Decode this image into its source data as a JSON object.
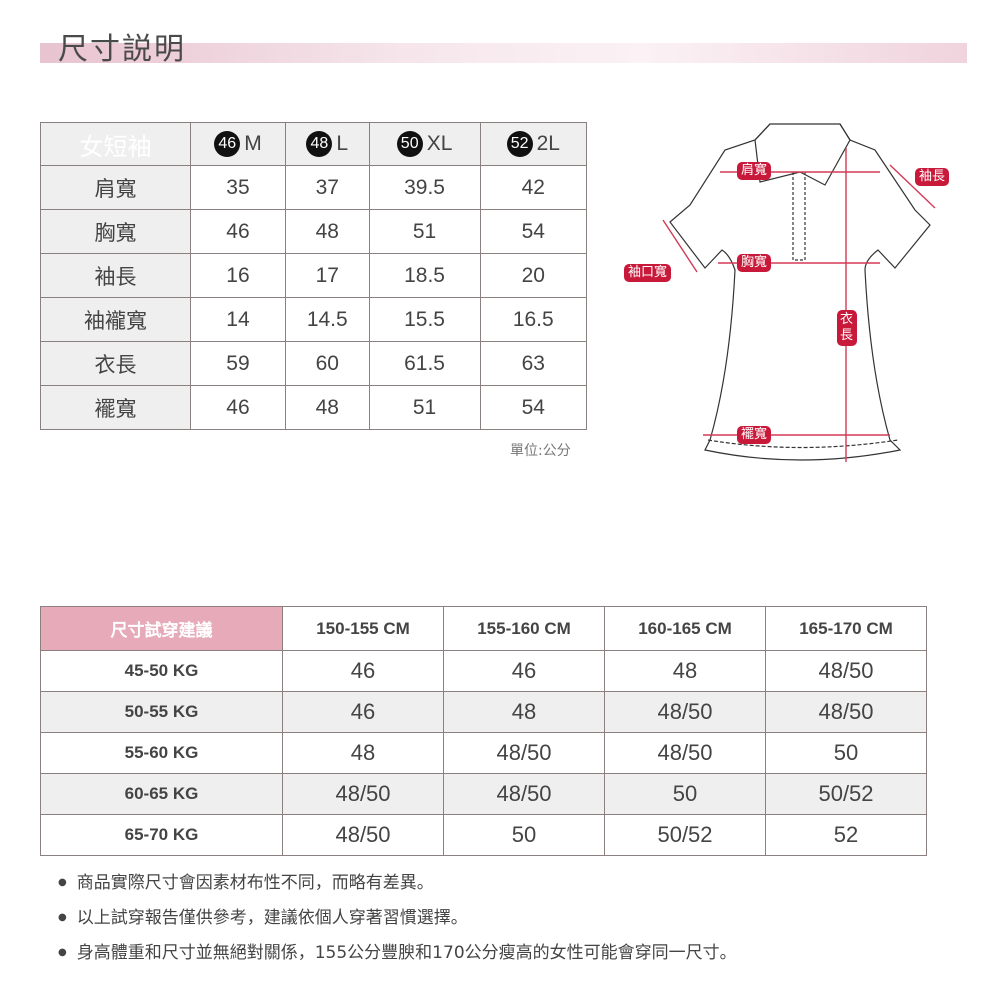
{
  "title": "尺寸説明",
  "size_table": {
    "header": "女短袖",
    "sizes": [
      {
        "num": "46",
        "label": "M"
      },
      {
        "num": "48",
        "label": "L"
      },
      {
        "num": "50",
        "label": "XL"
      },
      {
        "num": "52",
        "label": "2L"
      }
    ],
    "rows": [
      {
        "label": "肩寬",
        "values": [
          "35",
          "37",
          "39.5",
          "42"
        ]
      },
      {
        "label": "胸寬",
        "values": [
          "46",
          "48",
          "51",
          "54"
        ]
      },
      {
        "label": "袖長",
        "values": [
          "16",
          "17",
          "18.5",
          "20"
        ]
      },
      {
        "label": "袖襱寬",
        "values": [
          "14",
          "14.5",
          "15.5",
          "16.5"
        ]
      },
      {
        "label": "衣長",
        "values": [
          "59",
          "60",
          "61.5",
          "63"
        ]
      },
      {
        "label": "襬寬",
        "values": [
          "46",
          "48",
          "51",
          "54"
        ]
      }
    ],
    "unit": "單位:公分"
  },
  "diagram": {
    "labels": {
      "shoulder": "肩寬",
      "sleeve": "袖長",
      "cuff": "袖口寬",
      "chest": "胸寬",
      "length": "衣長",
      "hem": "襬寬"
    },
    "accent": "#c8193a"
  },
  "fit_table": {
    "header": "尺寸試穿建議",
    "heights": [
      "150-155 CM",
      "155-160 CM",
      "160-165 CM",
      "165-170 CM"
    ],
    "rows": [
      {
        "weight": "45-50 KG",
        "values": [
          "46",
          "46",
          "48",
          "48/50"
        ]
      },
      {
        "weight": "50-55 KG",
        "values": [
          "46",
          "48",
          "48/50",
          "48/50"
        ]
      },
      {
        "weight": "55-60 KG",
        "values": [
          "48",
          "48/50",
          "48/50",
          "50"
        ]
      },
      {
        "weight": "60-65 KG",
        "values": [
          "48/50",
          "48/50",
          "50",
          "50/52"
        ]
      },
      {
        "weight": "65-70 KG",
        "values": [
          "48/50",
          "50",
          "50/52",
          "52"
        ]
      }
    ]
  },
  "notes": [
    "商品實際尺寸會因素材布性不同，而略有差異。",
    "以上試穿報告僅供參考，建議依個人穿著習慣選擇。",
    "身高體重和尺寸並無絕對關係，155公分豐腴和170公分瘦高的女性可能會穿同一尺寸。"
  ]
}
